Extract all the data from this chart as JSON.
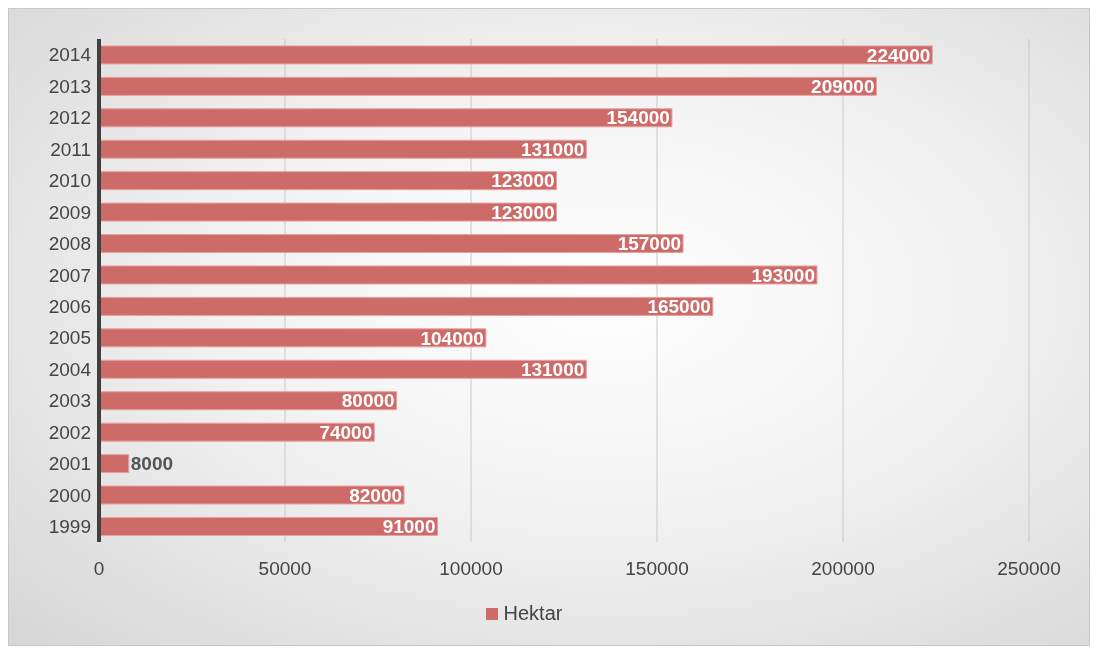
{
  "chart_data": {
    "type": "bar",
    "orientation": "horizontal",
    "categories": [
      "2014",
      "2013",
      "2012",
      "2011",
      "2010",
      "2009",
      "2008",
      "2007",
      "2006",
      "2005",
      "2004",
      "2003",
      "2002",
      "2001",
      "2000",
      "1999"
    ],
    "series": [
      {
        "name": "Hektar",
        "color": "#cd6b69",
        "values": [
          224000,
          209000,
          154000,
          131000,
          123000,
          123000,
          157000,
          193000,
          165000,
          104000,
          131000,
          80000,
          74000,
          8000,
          82000,
          91000
        ]
      }
    ],
    "xlim": [
      0,
      250000
    ],
    "xticks": [
      0,
      50000,
      100000,
      150000,
      200000,
      250000
    ],
    "grid": "x",
    "legend": "bottom",
    "data_labels": true
  }
}
